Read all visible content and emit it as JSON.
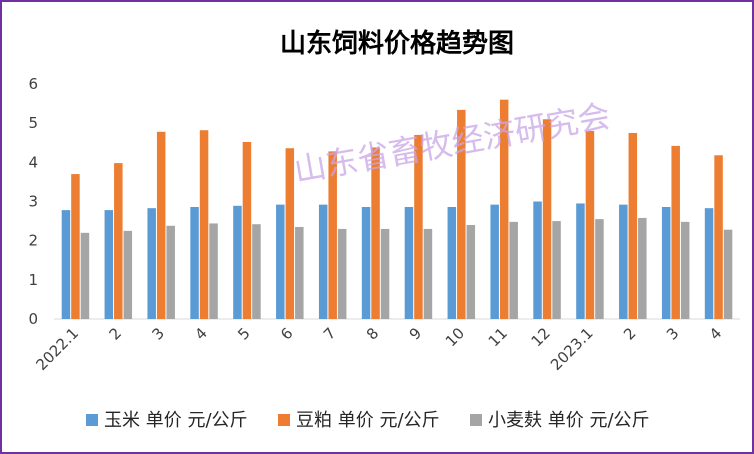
{
  "chart_data": {
    "type": "bar",
    "title": "山东饲料价格趋势图",
    "watermark": "山东省畜牧经济研究会",
    "categories": [
      "2022.1",
      "2",
      "3",
      "4",
      "5",
      "6",
      "7",
      "8",
      "9",
      "10",
      "11",
      "12",
      "2023.1",
      "2",
      "3",
      "4"
    ],
    "series": [
      {
        "name": "玉米 单价 元/公斤",
        "color": "#5b9bd5",
        "values": [
          2.78,
          2.78,
          2.83,
          2.86,
          2.89,
          2.92,
          2.92,
          2.86,
          2.86,
          2.86,
          2.92,
          3.0,
          2.95,
          2.92,
          2.86,
          2.83
        ]
      },
      {
        "name": "豆粕 单价 元/公斤",
        "color": "#ed7d31",
        "values": [
          3.7,
          3.98,
          4.78,
          4.82,
          4.52,
          4.36,
          4.28,
          4.38,
          4.7,
          5.34,
          5.6,
          5.1,
          4.8,
          4.75,
          4.42,
          4.18
        ]
      },
      {
        "name": "小麦麸 单价 元/公斤",
        "color": "#a5a5a5",
        "values": [
          2.2,
          2.25,
          2.38,
          2.44,
          2.42,
          2.35,
          2.3,
          2.3,
          2.3,
          2.4,
          2.48,
          2.5,
          2.55,
          2.58,
          2.48,
          2.28
        ]
      }
    ],
    "ylim": [
      0,
      6
    ],
    "yticks": [
      0,
      1,
      2,
      3,
      4,
      5,
      6
    ],
    "xlabel": "",
    "ylabel": "",
    "grid": false,
    "legend": "bottom"
  }
}
